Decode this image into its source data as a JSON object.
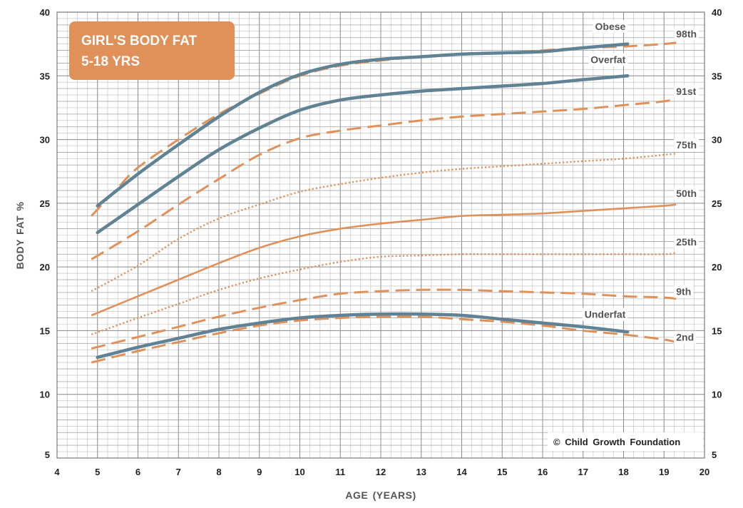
{
  "chart_data": {
    "type": "line",
    "title_lines": [
      "GIRL'S BODY FAT",
      "5-18 YRS"
    ],
    "xlabel": "AGE  (YEARS)",
    "ylabel": "BODY  FAT  %",
    "xlim": [
      4,
      20
    ],
    "ylim": [
      5,
      40
    ],
    "xticks": [
      4,
      5,
      6,
      7,
      8,
      9,
      10,
      11,
      12,
      13,
      14,
      15,
      16,
      17,
      18,
      19,
      20
    ],
    "yticks": [
      5,
      10,
      15,
      20,
      25,
      30,
      35,
      40
    ],
    "grid": true,
    "copyright": "© Child Growth Foundation",
    "colors": {
      "percentile": "#e0915a",
      "cutoff": "#5f8294",
      "grid": "#bdbdbd",
      "title_box": "#e0915a",
      "title_text": "#ffffff"
    },
    "series": [
      {
        "name": "98th",
        "group": "percentile",
        "style": "dashed",
        "points": [
          [
            4.85,
            24.0
          ],
          [
            5.5,
            26.2
          ],
          [
            6,
            27.8
          ],
          [
            7,
            30.0
          ],
          [
            8,
            32.0
          ],
          [
            9,
            33.6
          ],
          [
            10,
            35.0
          ],
          [
            11,
            35.8
          ],
          [
            12,
            36.2
          ],
          [
            13,
            36.5
          ],
          [
            14,
            36.7
          ],
          [
            15,
            36.8
          ],
          [
            16,
            37.0
          ],
          [
            17,
            37.2
          ],
          [
            18,
            37.3
          ],
          [
            19,
            37.5
          ],
          [
            19.3,
            37.6
          ]
        ]
      },
      {
        "name": "91st",
        "group": "percentile",
        "style": "dashed",
        "points": [
          [
            4.85,
            20.6
          ],
          [
            6,
            22.8
          ],
          [
            7,
            24.9
          ],
          [
            8,
            26.9
          ],
          [
            9,
            28.8
          ],
          [
            10,
            30.1
          ],
          [
            11,
            30.7
          ],
          [
            12,
            31.1
          ],
          [
            13,
            31.5
          ],
          [
            14,
            31.8
          ],
          [
            15,
            32.0
          ],
          [
            16,
            32.2
          ],
          [
            17,
            32.4
          ],
          [
            18,
            32.7
          ],
          [
            19,
            33.0
          ],
          [
            19.3,
            33.2
          ]
        ]
      },
      {
        "name": "75th",
        "group": "percentile",
        "style": "dotted",
        "points": [
          [
            4.85,
            18.1
          ],
          [
            6,
            20.1
          ],
          [
            7,
            22.2
          ],
          [
            8,
            23.8
          ],
          [
            9,
            24.9
          ],
          [
            10,
            25.9
          ],
          [
            11,
            26.5
          ],
          [
            12,
            27.0
          ],
          [
            13,
            27.4
          ],
          [
            14,
            27.7
          ],
          [
            15,
            27.9
          ],
          [
            16,
            28.1
          ],
          [
            17,
            28.3
          ],
          [
            18,
            28.5
          ],
          [
            19,
            28.8
          ],
          [
            19.3,
            28.9
          ]
        ]
      },
      {
        "name": "50th",
        "group": "percentile",
        "style": "solid",
        "points": [
          [
            4.85,
            16.2
          ],
          [
            6,
            17.7
          ],
          [
            7,
            19.0
          ],
          [
            8,
            20.3
          ],
          [
            9,
            21.5
          ],
          [
            10,
            22.4
          ],
          [
            11,
            23.0
          ],
          [
            12,
            23.4
          ],
          [
            13,
            23.7
          ],
          [
            14,
            24.0
          ],
          [
            15,
            24.1
          ],
          [
            16,
            24.2
          ],
          [
            17,
            24.4
          ],
          [
            18,
            24.6
          ],
          [
            19,
            24.8
          ],
          [
            19.3,
            24.9
          ]
        ]
      },
      {
        "name": "25th",
        "group": "percentile",
        "style": "dotted",
        "points": [
          [
            4.85,
            14.7
          ],
          [
            6,
            16.0
          ],
          [
            7,
            17.1
          ],
          [
            8,
            18.2
          ],
          [
            9,
            19.1
          ],
          [
            10,
            19.8
          ],
          [
            11,
            20.4
          ],
          [
            12,
            20.8
          ],
          [
            13,
            20.9
          ],
          [
            14,
            21.0
          ],
          [
            15,
            21.0
          ],
          [
            16,
            21.0
          ],
          [
            17,
            21.0
          ],
          [
            18,
            21.0
          ],
          [
            19,
            21.0
          ],
          [
            19.3,
            21.1
          ]
        ]
      },
      {
        "name": "9th",
        "group": "percentile",
        "style": "dashed",
        "points": [
          [
            4.85,
            13.6
          ],
          [
            6,
            14.5
          ],
          [
            7,
            15.3
          ],
          [
            8,
            16.1
          ],
          [
            9,
            16.8
          ],
          [
            10,
            17.4
          ],
          [
            11,
            17.9
          ],
          [
            12,
            18.1
          ],
          [
            13,
            18.2
          ],
          [
            14,
            18.2
          ],
          [
            15,
            18.1
          ],
          [
            16,
            18.0
          ],
          [
            17,
            17.9
          ],
          [
            18,
            17.7
          ],
          [
            19,
            17.6
          ],
          [
            19.3,
            17.5
          ]
        ]
      },
      {
        "name": "2nd",
        "group": "percentile",
        "style": "dashed",
        "points": [
          [
            4.85,
            12.5
          ],
          [
            6,
            13.4
          ],
          [
            7,
            14.1
          ],
          [
            8,
            14.8
          ],
          [
            9,
            15.4
          ],
          [
            10,
            15.8
          ],
          [
            11,
            16.0
          ],
          [
            12,
            16.1
          ],
          [
            13,
            16.1
          ],
          [
            14,
            15.9
          ],
          [
            15,
            15.7
          ],
          [
            16,
            15.4
          ],
          [
            17,
            15.0
          ],
          [
            18,
            14.7
          ],
          [
            19,
            14.3
          ],
          [
            19.3,
            14.1
          ]
        ]
      },
      {
        "name": "Obese",
        "group": "cutoff",
        "style": "solid",
        "points": [
          [
            5,
            24.8
          ],
          [
            6,
            27.3
          ],
          [
            7,
            29.6
          ],
          [
            8,
            31.8
          ],
          [
            9,
            33.7
          ],
          [
            10,
            35.1
          ],
          [
            11,
            35.9
          ],
          [
            12,
            36.3
          ],
          [
            13,
            36.5
          ],
          [
            14,
            36.7
          ],
          [
            15,
            36.8
          ],
          [
            16,
            36.9
          ],
          [
            17,
            37.2
          ],
          [
            18.1,
            37.5
          ]
        ]
      },
      {
        "name": "Overfat",
        "group": "cutoff",
        "style": "solid",
        "points": [
          [
            5,
            22.7
          ],
          [
            6,
            24.9
          ],
          [
            7,
            27.1
          ],
          [
            8,
            29.2
          ],
          [
            9,
            30.9
          ],
          [
            10,
            32.3
          ],
          [
            11,
            33.1
          ],
          [
            12,
            33.5
          ],
          [
            13,
            33.8
          ],
          [
            14,
            34.0
          ],
          [
            15,
            34.2
          ],
          [
            16,
            34.4
          ],
          [
            17,
            34.7
          ],
          [
            18.1,
            35.0
          ]
        ]
      },
      {
        "name": "Underfat",
        "group": "cutoff",
        "style": "solid",
        "points": [
          [
            5,
            12.9
          ],
          [
            6,
            13.7
          ],
          [
            7,
            14.4
          ],
          [
            8,
            15.1
          ],
          [
            9,
            15.6
          ],
          [
            10,
            16.0
          ],
          [
            11,
            16.2
          ],
          [
            12,
            16.3
          ],
          [
            13,
            16.3
          ],
          [
            14,
            16.2
          ],
          [
            15,
            15.9
          ],
          [
            16,
            15.6
          ],
          [
            17,
            15.3
          ],
          [
            18.1,
            14.9
          ]
        ]
      }
    ],
    "labels": [
      {
        "text": "Obese",
        "x": 18.05,
        "y": 38.6,
        "anchor": "end"
      },
      {
        "text": "98th",
        "x": 19.3,
        "y": 38.0,
        "anchor": "start"
      },
      {
        "text": "Overfat",
        "x": 18.05,
        "y": 36.0,
        "anchor": "end"
      },
      {
        "text": "91st",
        "x": 19.3,
        "y": 33.5,
        "anchor": "start"
      },
      {
        "text": "75th",
        "x": 19.3,
        "y": 29.3,
        "anchor": "start"
      },
      {
        "text": "50th",
        "x": 19.3,
        "y": 25.5,
        "anchor": "start"
      },
      {
        "text": "25th",
        "x": 19.3,
        "y": 21.7,
        "anchor": "start"
      },
      {
        "text": "9th",
        "x": 19.3,
        "y": 17.8,
        "anchor": "start"
      },
      {
        "text": "Underfat",
        "x": 18.05,
        "y": 16.0,
        "anchor": "end"
      },
      {
        "text": "2nd",
        "x": 19.3,
        "y": 14.2,
        "anchor": "start"
      }
    ]
  }
}
